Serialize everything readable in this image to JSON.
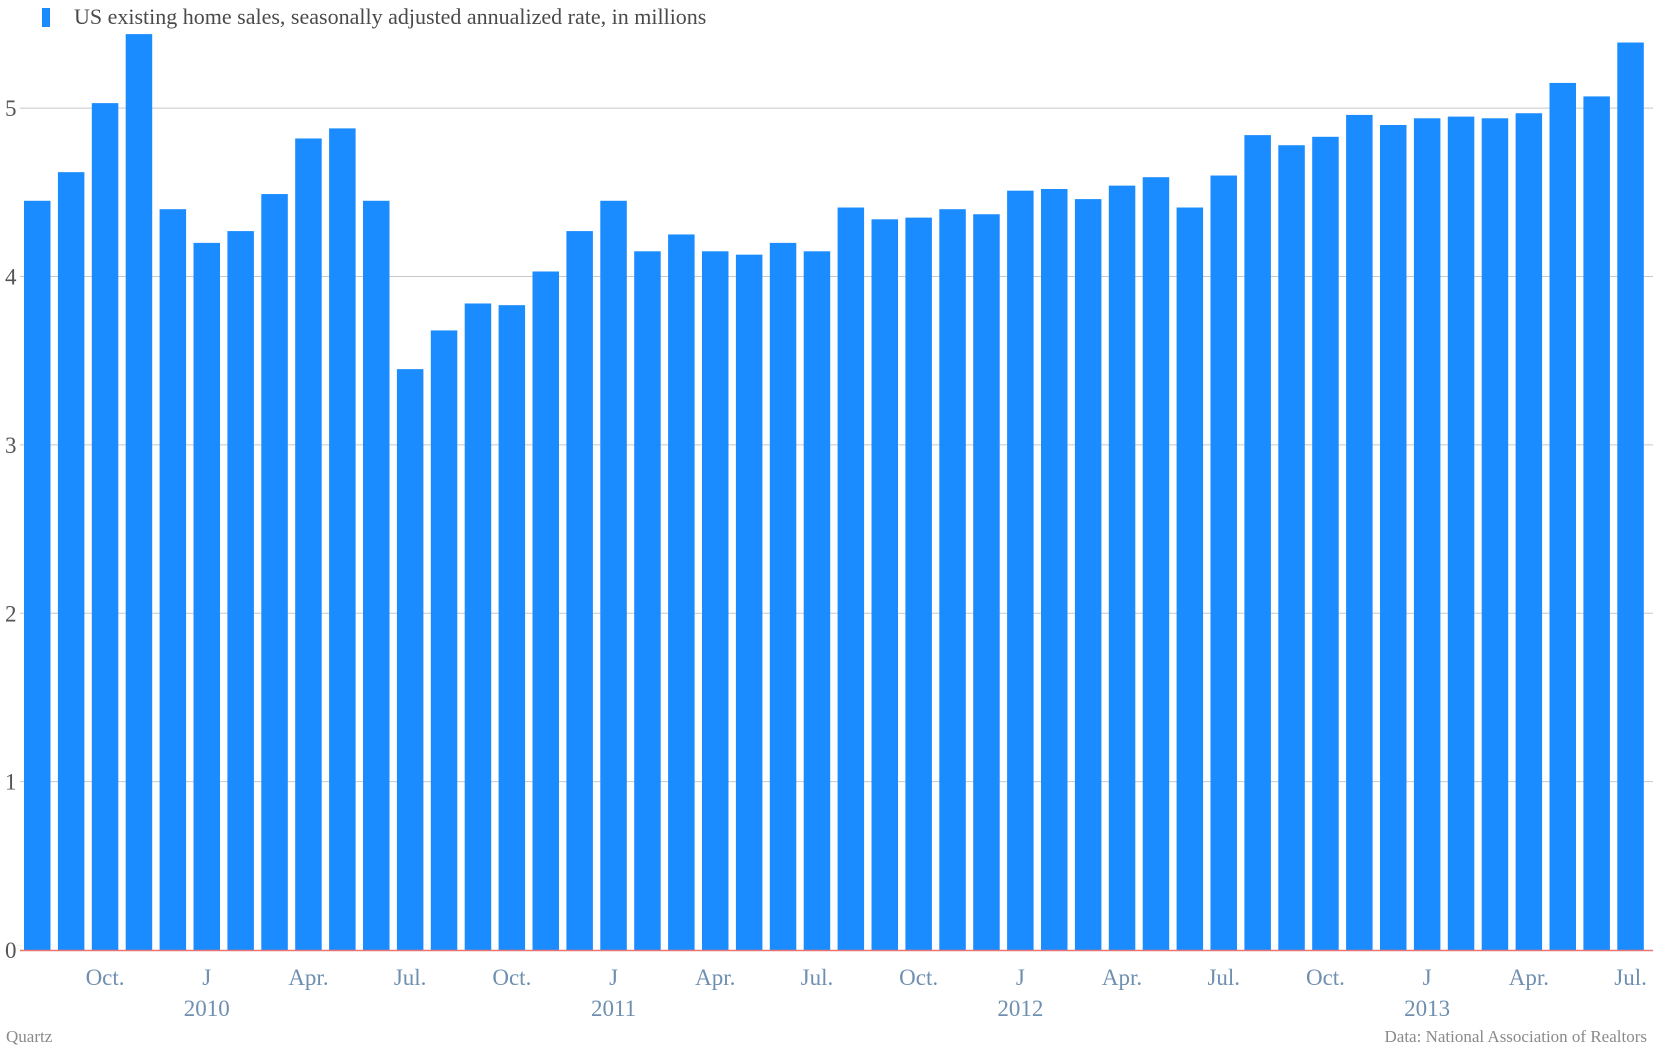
{
  "chart_data": {
    "type": "bar",
    "legend": {
      "label": "US existing home sales, seasonally adjusted annualized rate, in millions",
      "color": "#1a8cff",
      "placement": "top-left"
    },
    "ylim": [
      0,
      5.5
    ],
    "yticks": [
      0,
      1,
      2,
      3,
      4,
      5
    ],
    "grid": true,
    "bar_color": "#1a8cff",
    "axis_line_color": "#e87474",
    "categories": [
      "2009-08",
      "2009-09",
      "2009-10",
      "2009-11",
      "2009-12",
      "2010-01",
      "2010-02",
      "2010-03",
      "2010-04",
      "2010-05",
      "2010-06",
      "2010-07",
      "2010-08",
      "2010-09",
      "2010-10",
      "2010-11",
      "2010-12",
      "2011-01",
      "2011-02",
      "2011-03",
      "2011-04",
      "2011-05",
      "2011-06",
      "2011-07",
      "2011-08",
      "2011-09",
      "2011-10",
      "2011-11",
      "2011-12",
      "2012-01",
      "2012-02",
      "2012-03",
      "2012-04",
      "2012-05",
      "2012-06",
      "2012-07",
      "2012-08",
      "2012-09",
      "2012-10",
      "2012-11",
      "2012-12",
      "2013-01",
      "2013-02",
      "2013-03",
      "2013-04",
      "2013-05",
      "2013-06",
      "2013-07",
      "2013-08"
    ],
    "values": [
      4.45,
      4.62,
      5.03,
      5.44,
      4.4,
      4.2,
      4.27,
      4.49,
      4.82,
      4.88,
      4.45,
      3.45,
      3.68,
      3.84,
      3.83,
      4.03,
      4.27,
      4.45,
      4.15,
      4.25,
      4.15,
      4.13,
      4.2,
      4.15,
      4.41,
      4.34,
      4.35,
      4.4,
      4.37,
      4.51,
      4.52,
      4.46,
      4.54,
      4.59,
      4.41,
      4.6,
      4.84,
      4.78,
      4.83,
      4.96,
      4.9,
      4.94,
      4.95,
      4.94,
      4.97,
      5.15,
      5.07,
      5.39,
      0
    ],
    "x_tick_labels": [
      {
        "index": 2,
        "label": "Oct."
      },
      {
        "index": 5,
        "label": "J",
        "year": "2010"
      },
      {
        "index": 8,
        "label": "Apr."
      },
      {
        "index": 11,
        "label": "Jul."
      },
      {
        "index": 14,
        "label": "Oct."
      },
      {
        "index": 17,
        "label": "J",
        "year": "2011"
      },
      {
        "index": 20,
        "label": "Apr."
      },
      {
        "index": 23,
        "label": "Jul."
      },
      {
        "index": 26,
        "label": "Oct."
      },
      {
        "index": 29,
        "label": "J",
        "year": "2012"
      },
      {
        "index": 32,
        "label": "Apr."
      },
      {
        "index": 35,
        "label": "Jul."
      },
      {
        "index": 38,
        "label": "Oct."
      },
      {
        "index": 41,
        "label": "J",
        "year": "2013"
      },
      {
        "index": 44,
        "label": "Apr."
      },
      {
        "index": 47,
        "label": "Jul."
      }
    ]
  },
  "footer": {
    "source_left": "Quartz",
    "source_right": "Data: National Association of Realtors"
  }
}
